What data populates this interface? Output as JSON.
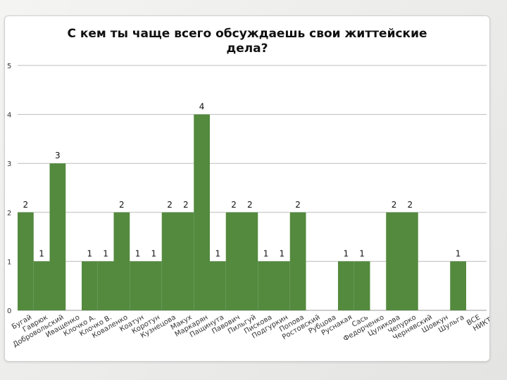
{
  "chart_data": {
    "type": "bar",
    "title_lines": [
      "С кем ты чаще всего обсуждаешь свои життейские",
      "дела?"
    ],
    "xlabel": "",
    "ylabel": "",
    "ylim": [
      0,
      5
    ],
    "yticks": [
      0,
      1,
      2,
      3,
      4,
      5
    ],
    "grid": true,
    "legend": "none",
    "bar_color": "#538a3e",
    "categories": [
      "Бугай",
      "Гаврюк",
      "Добровольский",
      "Иващенко",
      "Клочко А.",
      "Клочко В.",
      "Коваленко",
      "Коатун",
      "Коротун",
      "Кузнецова",
      "Макух",
      "Маркарян",
      "Пащинута",
      "Павович",
      "Пильгуй",
      "Пискова",
      "Подгуркин",
      "Попова",
      "Ростовский",
      "Рубцова",
      "Руснакая",
      "Сась",
      "Федорченко",
      "Цуликова",
      "Чепурко",
      "Чернявский",
      "Шовкун",
      "Шульга",
      "ВСЕ",
      "НИКТО"
    ],
    "values": [
      2,
      1,
      3,
      null,
      1,
      1,
      2,
      1,
      1,
      2,
      2,
      4,
      1,
      2,
      2,
      1,
      1,
      2,
      null,
      null,
      1,
      1,
      null,
      2,
      2,
      null,
      null,
      1,
      null,
      null
    ],
    "data_labels": [
      "2",
      "1",
      "3",
      "",
      "1",
      "1",
      "2",
      "1",
      "1",
      "2",
      "2",
      "4",
      "1",
      "2",
      "2",
      "1",
      "1",
      "2",
      "",
      "",
      "1",
      "1",
      "",
      "2",
      "2",
      "",
      "",
      "1",
      "",
      ""
    ]
  }
}
